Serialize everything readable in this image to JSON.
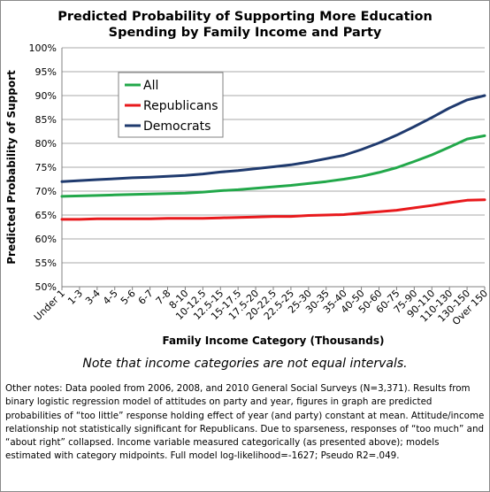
{
  "chart_data": {
    "type": "line",
    "title": [
      "Predicted Probability of Supporting More Education",
      "Spending by Family Income and Party"
    ],
    "xlabel": "Family Income Category (Thousands)",
    "ylabel": "Predicted Probability of Support",
    "ylim": [
      0.5,
      1.0
    ],
    "yticks": [
      "100%",
      "95%",
      "90%",
      "85%",
      "80%",
      "75%",
      "70%",
      "65%",
      "60%",
      "55%",
      "50%"
    ],
    "grid": "horizontal",
    "legend_position": "top-left",
    "categories": [
      "Under 1",
      "1-3",
      "3-4",
      "4-5",
      "5-6",
      "6-7",
      "7-8",
      "8-10",
      "10-12.5",
      "12.5-15",
      "15-17.5",
      "17.5-20",
      "20-22.5",
      "22.5-25",
      "25-30",
      "30-35",
      "35-40",
      "40-50",
      "50-60",
      "60-75",
      "75-90",
      "90-110",
      "110-130",
      "130-150",
      "Over 150"
    ],
    "series": [
      {
        "name": "All",
        "color": "#22a84a",
        "values": [
          0.689,
          0.69,
          0.691,
          0.692,
          0.693,
          0.694,
          0.695,
          0.696,
          0.698,
          0.701,
          0.703,
          0.706,
          0.709,
          0.712,
          0.716,
          0.72,
          0.725,
          0.731,
          0.739,
          0.749,
          0.762,
          0.776,
          0.792,
          0.809,
          0.816
        ]
      },
      {
        "name": "Republicans",
        "color": "#e8191c",
        "values": [
          0.641,
          0.641,
          0.642,
          0.642,
          0.642,
          0.642,
          0.643,
          0.643,
          0.643,
          0.644,
          0.645,
          0.646,
          0.647,
          0.647,
          0.649,
          0.65,
          0.651,
          0.654,
          0.657,
          0.66,
          0.665,
          0.67,
          0.676,
          0.681,
          0.682
        ]
      },
      {
        "name": "Democrats",
        "color": "#1f3a6e",
        "values": [
          0.72,
          0.722,
          0.724,
          0.726,
          0.728,
          0.729,
          0.731,
          0.733,
          0.736,
          0.74,
          0.743,
          0.747,
          0.751,
          0.755,
          0.761,
          0.768,
          0.775,
          0.787,
          0.801,
          0.817,
          0.835,
          0.854,
          0.874,
          0.891,
          0.9
        ]
      }
    ]
  },
  "note": "Note that income categories are not equal intervals.",
  "other_notes": "Other notes: Data pooled from 2006, 2008, and 2010 General Social Surveys (N=3,371). Results from binary logistic regression model of attitudes on party and year, figures in graph are predicted probabilities of “too little” response holding effect of year (and party) constant at mean. Attitude/income relationship not statistically significant for Republicans. Due to sparseness, responses of “too much” and “about right” collapsed. Income variable measured categorically (as presented above); models estimated with category midpoints. Full model log-likelihood=-1627; Pseudo R2=.049."
}
